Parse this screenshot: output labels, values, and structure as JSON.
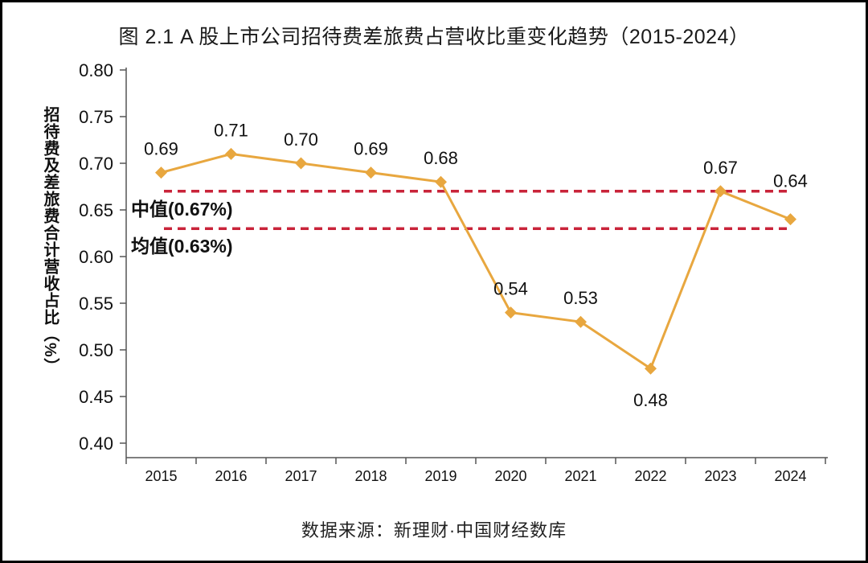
{
  "figure": {
    "title": "图 2.1 A 股上市公司招待费差旅费占营收比重变化趋势（2015-2024）",
    "source": "数据来源：新理财·中国财经数库"
  },
  "chart_data": {
    "type": "line",
    "title": "图 2.1 A 股上市公司招待费差旅费占营收比重变化趋势（2015-2024）",
    "categories": [
      "2015",
      "2016",
      "2017",
      "2018",
      "2019",
      "2020",
      "2021",
      "2022",
      "2023",
      "2024"
    ],
    "series": [
      {
        "name": "招待费及差旅费合计营收占比",
        "values": [
          0.69,
          0.71,
          0.7,
          0.69,
          0.68,
          0.54,
          0.53,
          0.48,
          0.67,
          0.64
        ],
        "labels": [
          "0.69",
          "0.71",
          "0.70",
          "0.69",
          "0.68",
          "0.54",
          "0.53",
          "0.48",
          "0.67",
          "0.64"
        ],
        "color": "#E8A73F",
        "marker": "diamond"
      }
    ],
    "reference_lines": [
      {
        "label": "中值(0.67%)",
        "value": 0.67,
        "style": "dashed",
        "color": "#C9243A"
      },
      {
        "label": "均值(0.63%)",
        "value": 0.63,
        "style": "dashed",
        "color": "#C9243A"
      }
    ],
    "ylabel": "招待费及差旅费合计营收占比（%）",
    "xlabel": "",
    "ylim": [
      0.4,
      0.8
    ],
    "ytick_step": 0.05,
    "ytick_labels": [
      "0.80",
      "0.75",
      "0.70",
      "0.65",
      "0.60",
      "0.55",
      "0.50",
      "0.45",
      "0.40"
    ],
    "grid": false,
    "legend_position": "none",
    "source": "数据来源：新理财·中国财经数库",
    "colors": {
      "line": "#E8A73F",
      "reference": "#C9243A",
      "text": "#111111",
      "axis": "#555555",
      "background": "#ffffff",
      "frame": "#000000"
    }
  }
}
